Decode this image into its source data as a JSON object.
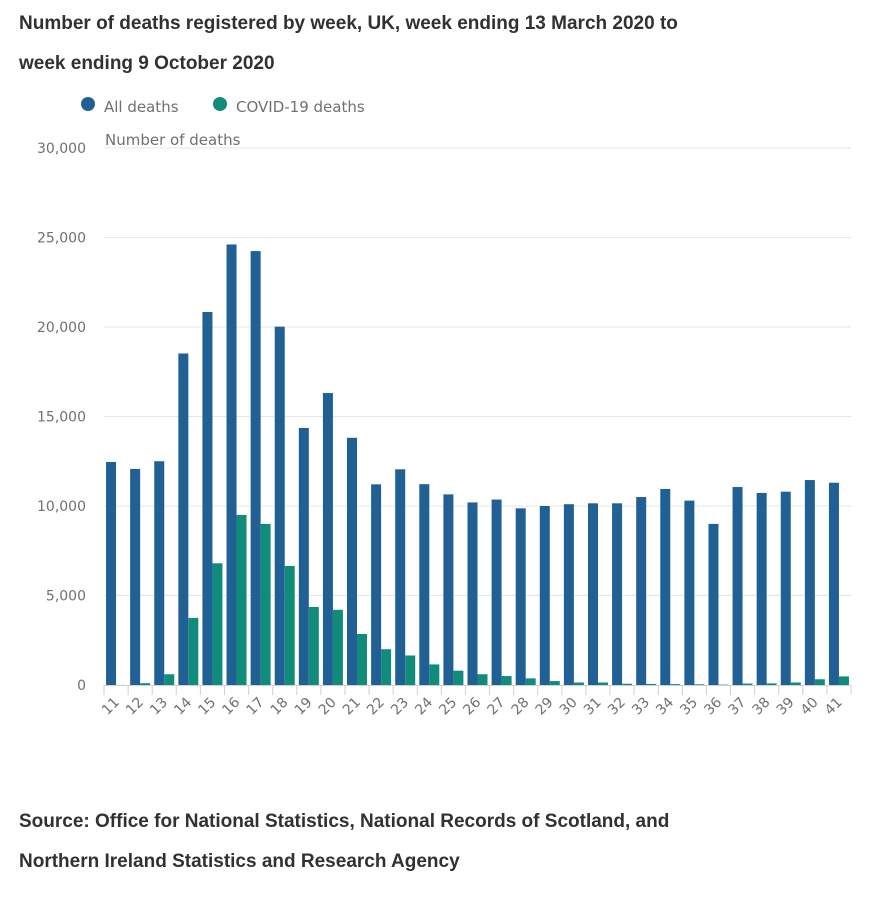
{
  "title_line1": "Number of deaths registered by week, UK, week ending 13 March 2020 to",
  "title_line2": "week ending 9 October 2020",
  "source_line1": "Source: Office for National Statistics, National Records of Scotland, and",
  "source_line2": "Northern Ireland Statistics and Research Agency",
  "chart_data": {
    "type": "bar",
    "title": "Number of deaths registered by week, UK, week ending 13 March 2020 to week ending 9 October 2020",
    "xlabel": "",
    "ylabel": "Number of deaths",
    "ylim": [
      0,
      30000
    ],
    "yticks": [
      0,
      5000,
      10000,
      15000,
      20000,
      25000,
      30000
    ],
    "ytick_labels": [
      "0",
      "5,000",
      "10,000",
      "15,000",
      "20,000",
      "25,000",
      "30,000"
    ],
    "grid": true,
    "legend_position": "top-left",
    "categories": [
      "11",
      "12",
      "13",
      "14",
      "15",
      "16",
      "17",
      "18",
      "19",
      "20",
      "21",
      "22",
      "23",
      "24",
      "25",
      "26",
      "27",
      "28",
      "29",
      "30",
      "31",
      "32",
      "33",
      "34",
      "35",
      "36",
      "37",
      "38",
      "39",
      "40",
      "41"
    ],
    "series": [
      {
        "name": "All deaths",
        "color": "#206095",
        "values": [
          12460,
          12070,
          12500,
          18520,
          20840,
          24610,
          24240,
          20020,
          14360,
          16310,
          13810,
          11210,
          12050,
          11220,
          10650,
          10200,
          10360,
          9870,
          10000,
          10100,
          10150,
          10150,
          10500,
          10950,
          10300,
          9000,
          11060,
          10730,
          10800,
          11450,
          11300
        ]
      },
      {
        "name": "COVID-19 deaths",
        "color": "#118c7b",
        "values": [
          5,
          100,
          600,
          3750,
          6800,
          9500,
          9000,
          6650,
          4360,
          4200,
          2850,
          2000,
          1650,
          1150,
          800,
          600,
          500,
          370,
          220,
          140,
          140,
          70,
          60,
          50,
          40,
          20,
          80,
          90,
          140,
          320,
          480
        ]
      }
    ]
  }
}
